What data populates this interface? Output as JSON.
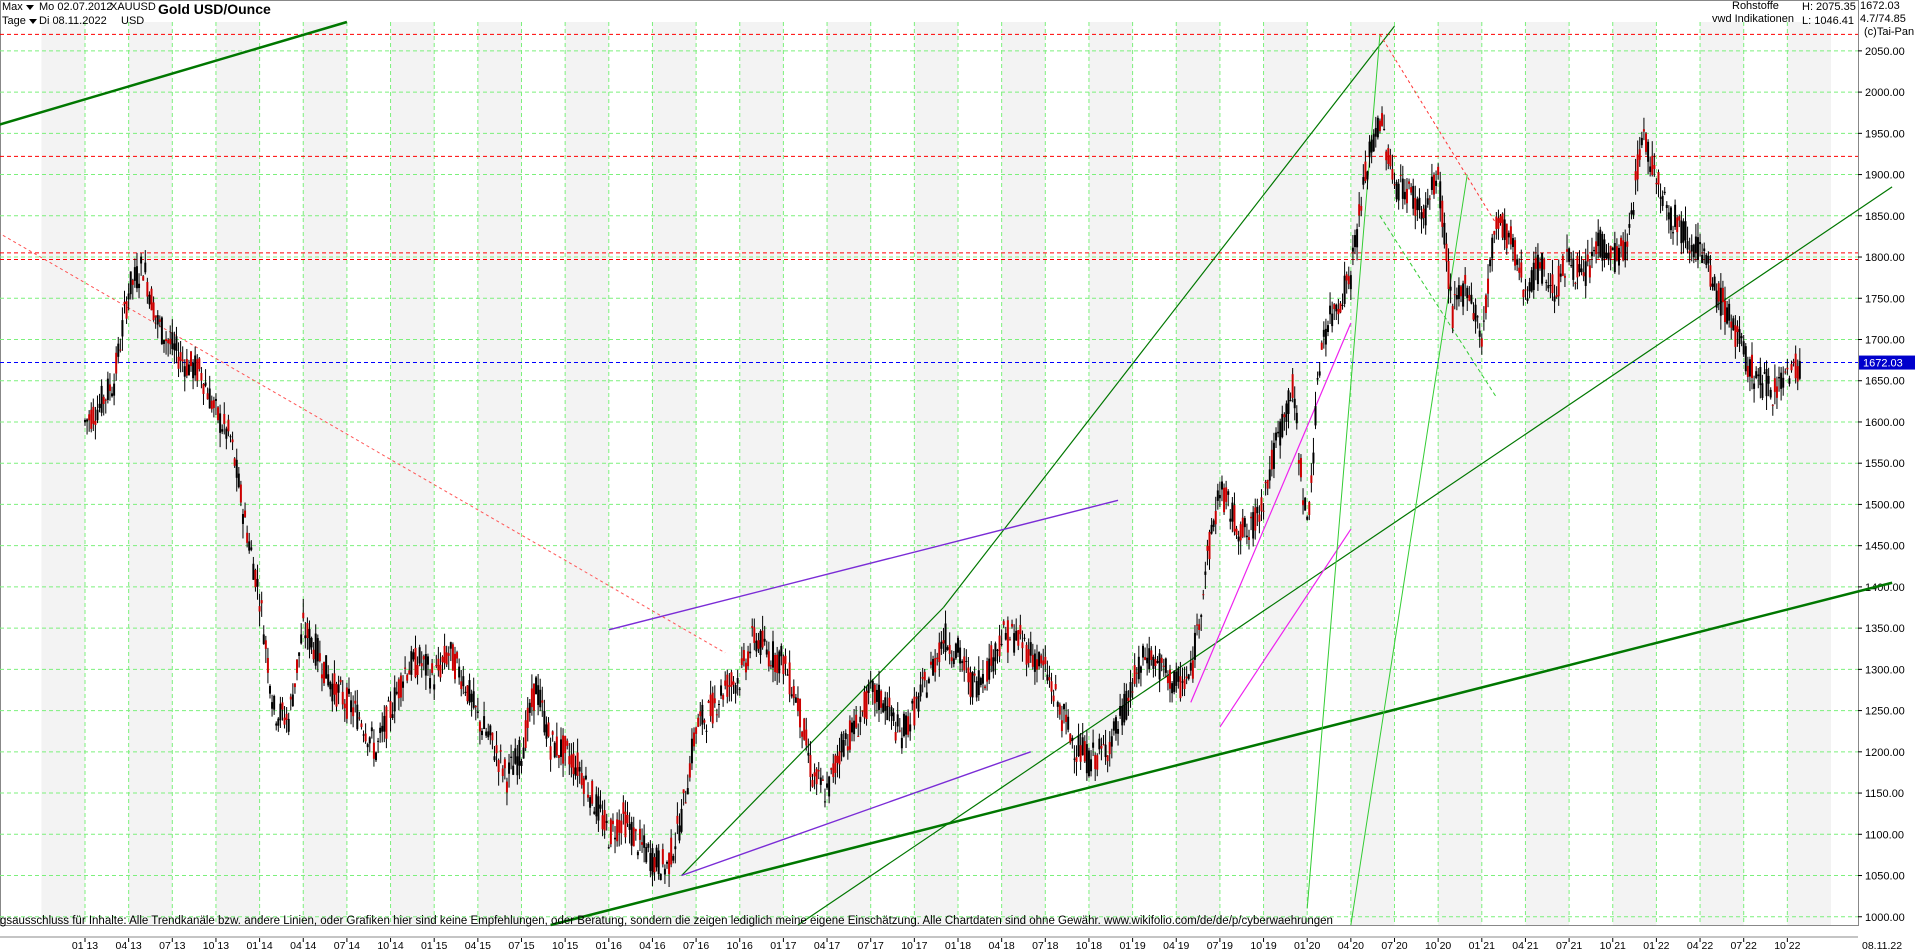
{
  "header": {
    "range_label": "Max",
    "interval_label": "Tage",
    "date_from": "Mo 02.07.2012",
    "date_to": "Di 08.11.2022",
    "symbol": "XAUUSD",
    "currency": "USD",
    "title": "Gold USD/Ounce",
    "category": "Rohstoffe",
    "provider": "vwd Indikationen",
    "high_label": "H: 2075.35",
    "low_label": "L: 1046.41",
    "last_price": "1672.03",
    "change_label": "4.7/74.85",
    "copyright": "(c)Tai-Pan"
  },
  "disclaimer": "gsausschluss für Inhalte: Alle Trendkanäle bzw. andere Linien, oder Grafiken hier sind keine Empfehlungen, oder Beratung, sondern die zeigen lediglich meine eigene Einschätzung. Alle Chartdaten sind ohne Gewähr.  www.wikifolio.com/de/de/p/cyberwaehrungen",
  "end_date_label": "08.11.22",
  "current_price_tag": "1672.03",
  "colors": {
    "grid": "#7cf07c",
    "candle_up": "#000000",
    "candle_down": "#cc0000",
    "price_line": "#0000ff",
    "price_tag_bg": "#0000cc",
    "resistance": "#ff0000",
    "trend_dark": "#007700",
    "trend_light": "#33cc33",
    "trend_violet": "#7a2cd6",
    "trend_magenta": "#ee22ee"
  },
  "chart_data": {
    "type": "candlestick",
    "title": "Gold USD/Ounce",
    "y_axis_side": "right",
    "ylim": [
      990,
      2085
    ],
    "y_ticks": [
      1000,
      1050,
      1100,
      1150,
      1200,
      1250,
      1300,
      1350,
      1400,
      1450,
      1500,
      1550,
      1600,
      1650,
      1700,
      1750,
      1800,
      1850,
      1900,
      1950,
      2000,
      2050
    ],
    "x_ticks": [
      "01 13",
      "04 13",
      "07 13",
      "10 13",
      "01 14",
      "04 14",
      "07 14",
      "10 14",
      "01 15",
      "04 15",
      "07 15",
      "10 15",
      "01 16",
      "04 16",
      "07 16",
      "10 16",
      "01 17",
      "04 17",
      "07 17",
      "10 17",
      "01 18",
      "04 18",
      "07 18",
      "10 18",
      "01 19",
      "04 19",
      "07 19",
      "10 19",
      "01 20",
      "04 20",
      "07 20",
      "10 20",
      "01 21",
      "04 21",
      "07 21",
      "10 21",
      "01 22",
      "04 22",
      "07 22",
      "10 22"
    ],
    "xlim_months": [
      0,
      124.2
    ],
    "series_close": [
      [
        0,
        1600
      ],
      [
        1,
        1620
      ],
      [
        2,
        1650
      ],
      [
        3,
        1760
      ],
      [
        4,
        1790
      ],
      [
        5,
        1720
      ],
      [
        6,
        1690
      ],
      [
        7,
        1670
      ],
      [
        8,
        1660
      ],
      [
        9,
        1610
      ],
      [
        10,
        1580
      ],
      [
        11,
        1480
      ],
      [
        12,
        1390
      ],
      [
        13,
        1250
      ],
      [
        14,
        1240
      ],
      [
        15,
        1350
      ],
      [
        16,
        1320
      ],
      [
        17,
        1280
      ],
      [
        18,
        1260
      ],
      [
        19,
        1240
      ],
      [
        20,
        1200
      ],
      [
        21,
        1250
      ],
      [
        22,
        1300
      ],
      [
        23,
        1310
      ],
      [
        24,
        1290
      ],
      [
        25,
        1320
      ],
      [
        26,
        1290
      ],
      [
        27,
        1240
      ],
      [
        28,
        1210
      ],
      [
        29,
        1170
      ],
      [
        30,
        1200
      ],
      [
        31,
        1280
      ],
      [
        32,
        1210
      ],
      [
        33,
        1200
      ],
      [
        34,
        1180
      ],
      [
        35,
        1140
      ],
      [
        36,
        1100
      ],
      [
        37,
        1120
      ],
      [
        38,
        1090
      ],
      [
        39,
        1070
      ],
      [
        40,
        1060
      ],
      [
        41,
        1120
      ],
      [
        42,
        1230
      ],
      [
        43,
        1250
      ],
      [
        44,
        1280
      ],
      [
        45,
        1290
      ],
      [
        46,
        1340
      ],
      [
        47,
        1320
      ],
      [
        48,
        1310
      ],
      [
        49,
        1260
      ],
      [
        50,
        1170
      ],
      [
        51,
        1150
      ],
      [
        52,
        1210
      ],
      [
        53,
        1230
      ],
      [
        54,
        1270
      ],
      [
        55,
        1260
      ],
      [
        56,
        1220
      ],
      [
        57,
        1250
      ],
      [
        58,
        1290
      ],
      [
        59,
        1340
      ],
      [
        60,
        1320
      ],
      [
        61,
        1280
      ],
      [
        62,
        1300
      ],
      [
        63,
        1340
      ],
      [
        64,
        1340
      ],
      [
        65,
        1320
      ],
      [
        66,
        1300
      ],
      [
        67,
        1250
      ],
      [
        68,
        1210
      ],
      [
        69,
        1190
      ],
      [
        70,
        1200
      ],
      [
        71,
        1230
      ],
      [
        72,
        1280
      ],
      [
        73,
        1320
      ],
      [
        74,
        1300
      ],
      [
        75,
        1280
      ],
      [
        76,
        1290
      ],
      [
        77,
        1420
      ],
      [
        78,
        1520
      ],
      [
        79,
        1480
      ],
      [
        80,
        1460
      ],
      [
        81,
        1510
      ],
      [
        82,
        1580
      ],
      [
        83,
        1640
      ],
      [
        84,
        1470
      ],
      [
        85,
        1700
      ],
      [
        86,
        1740
      ],
      [
        87,
        1780
      ],
      [
        88,
        1900
      ],
      [
        89,
        1970
      ],
      [
        90,
        1890
      ],
      [
        91,
        1880
      ],
      [
        92,
        1850
      ],
      [
        93,
        1900
      ],
      [
        94,
        1730
      ],
      [
        95,
        1770
      ],
      [
        96,
        1700
      ],
      [
        97,
        1850
      ],
      [
        98,
        1820
      ],
      [
        99,
        1760
      ],
      [
        100,
        1790
      ],
      [
        101,
        1760
      ],
      [
        102,
        1800
      ],
      [
        103,
        1770
      ],
      [
        104,
        1820
      ],
      [
        105,
        1800
      ],
      [
        106,
        1810
      ],
      [
        107,
        1950
      ],
      [
        108,
        1900
      ],
      [
        109,
        1850
      ],
      [
        110,
        1830
      ],
      [
        111,
        1810
      ],
      [
        112,
        1760
      ],
      [
        113,
        1730
      ],
      [
        114,
        1680
      ],
      [
        115,
        1650
      ],
      [
        116,
        1640
      ],
      [
        117,
        1660
      ],
      [
        118,
        1672
      ]
    ],
    "horizontal_levels": [
      {
        "price": 2070,
        "style": "dashed",
        "color": "#ff0000"
      },
      {
        "price": 1922,
        "style": "dashed",
        "color": "#ff0000"
      },
      {
        "price": 1805,
        "style": "dashed",
        "color": "#ff0000"
      },
      {
        "price": 1797,
        "style": "dashed",
        "color": "#ff0000"
      },
      {
        "price": 1672.03,
        "style": "dashed",
        "color": "#0000ff"
      }
    ]
  }
}
